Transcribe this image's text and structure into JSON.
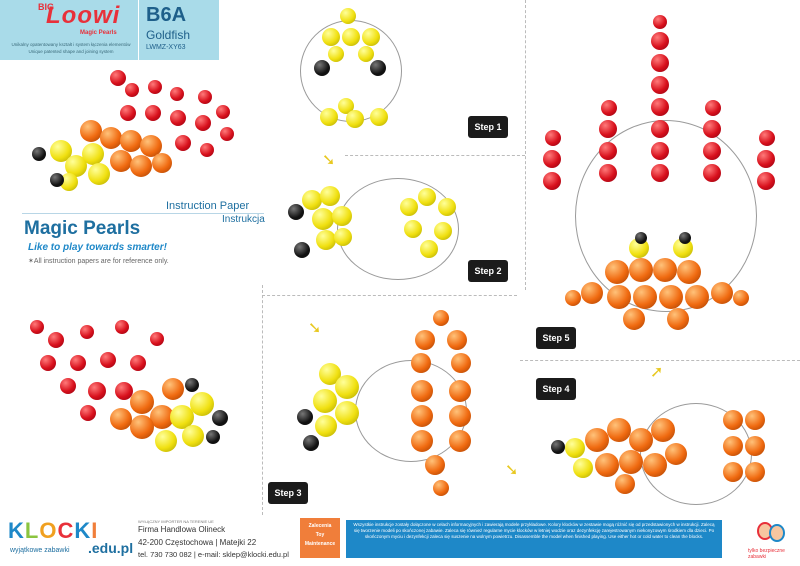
{
  "header": {
    "logo_big": "BIG",
    "logo_main": "Loowi",
    "logo_sub": "Magic Pearls",
    "tagline_1": "Unikalny opatentowany kształt i system łączenia elementów",
    "tagline_2": "Unique patented shape and joining system",
    "code": "B6A",
    "product": "Goldfish",
    "sku": "LWMZ-XY63"
  },
  "intro": {
    "instruction_paper": "Instruction Paper",
    "instrukcja": "Instrukcja",
    "brand": "Magic Pearls",
    "slogan": "Like to play towards smarter!",
    "note": "✶All instruction papers are for reference only."
  },
  "steps": [
    "Step 1",
    "Step 2",
    "Step 3",
    "Step 4",
    "Step 5"
  ],
  "footer": {
    "klocki_letters": [
      "K",
      "L",
      "O",
      "C",
      "K",
      "I"
    ],
    "klocki_colors": [
      "#1e88c8",
      "#8bc43f",
      "#f0a020",
      "#e8303a",
      "#1e88c8",
      "#f07e3a"
    ],
    "klocki_tagline": "wyjątkowe zabawki",
    "klocki_domain": ".edu.pl",
    "importer_heading": "WYŁĄCZNY IMPORTER NA TERENIE UE",
    "importer_line_1": "Firma Handlowa Olineck",
    "importer_line_2": "42-200 Częstochowa | Matejki 22",
    "importer_line_3": "tel. 730 730 082 | e-mail: sklep@klocki.edu.pl",
    "recommend": "Zalecenia\nToy\nMaintenance",
    "warning": "Wszystkie instrukcje zostały dołączone w celach informacyjnych i zawierają modele przykładowe. Kolory klocków w zestawie mogą różnić się od przedstawionych w instrukcji. Zalecą się tworzenie modeli po skończonej zabawie. Zaleca się również regularne mycie klocków w letniej wodzie oraz dezynfekcję zarejestrowanym niekonyzowym środkiem dla dzieci. Po skończonym myciu i dezynfekcji zaleca się suszenie na wolnym powietrzu. Disassemble the model when finished playing. Use either hot or cold water to clean the blocks.",
    "kid_badge": "tylko bezpieczne zabawki"
  }
}
